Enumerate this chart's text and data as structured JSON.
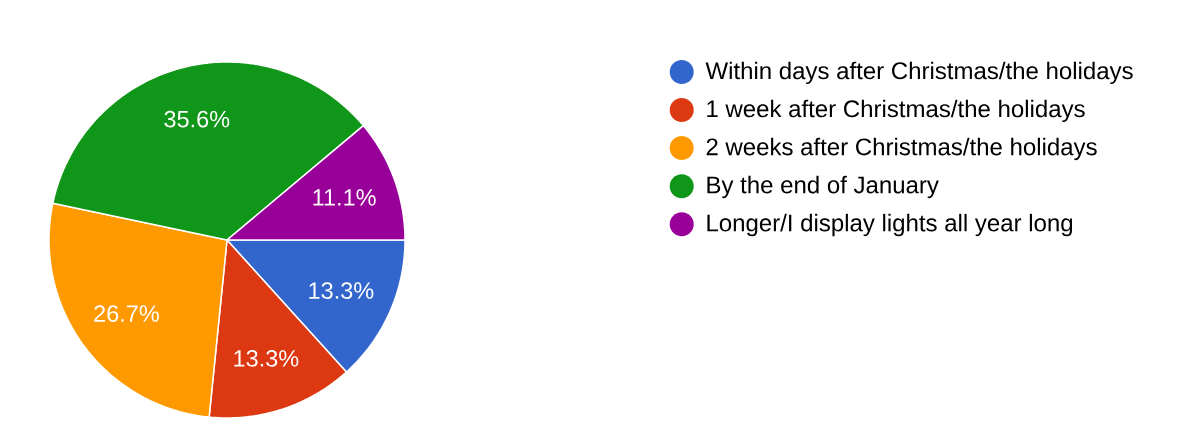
{
  "chart_data": {
    "type": "pie",
    "categories": [
      "Within days after Christmas/the holidays",
      "1 week after Christmas/the holidays",
      "2 weeks after Christmas/the holidays",
      "By the end of January",
      "Longer/I display lights all year long"
    ],
    "values": [
      13.3,
      13.3,
      26.7,
      35.6,
      11.1
    ],
    "value_labels": [
      "13.3%",
      "13.3%",
      "26.7%",
      "35.6%",
      "11.1%"
    ],
    "colors": [
      "#3366cc",
      "#dc3912",
      "#ff9900",
      "#109618",
      "#990099"
    ],
    "legend": "right"
  }
}
